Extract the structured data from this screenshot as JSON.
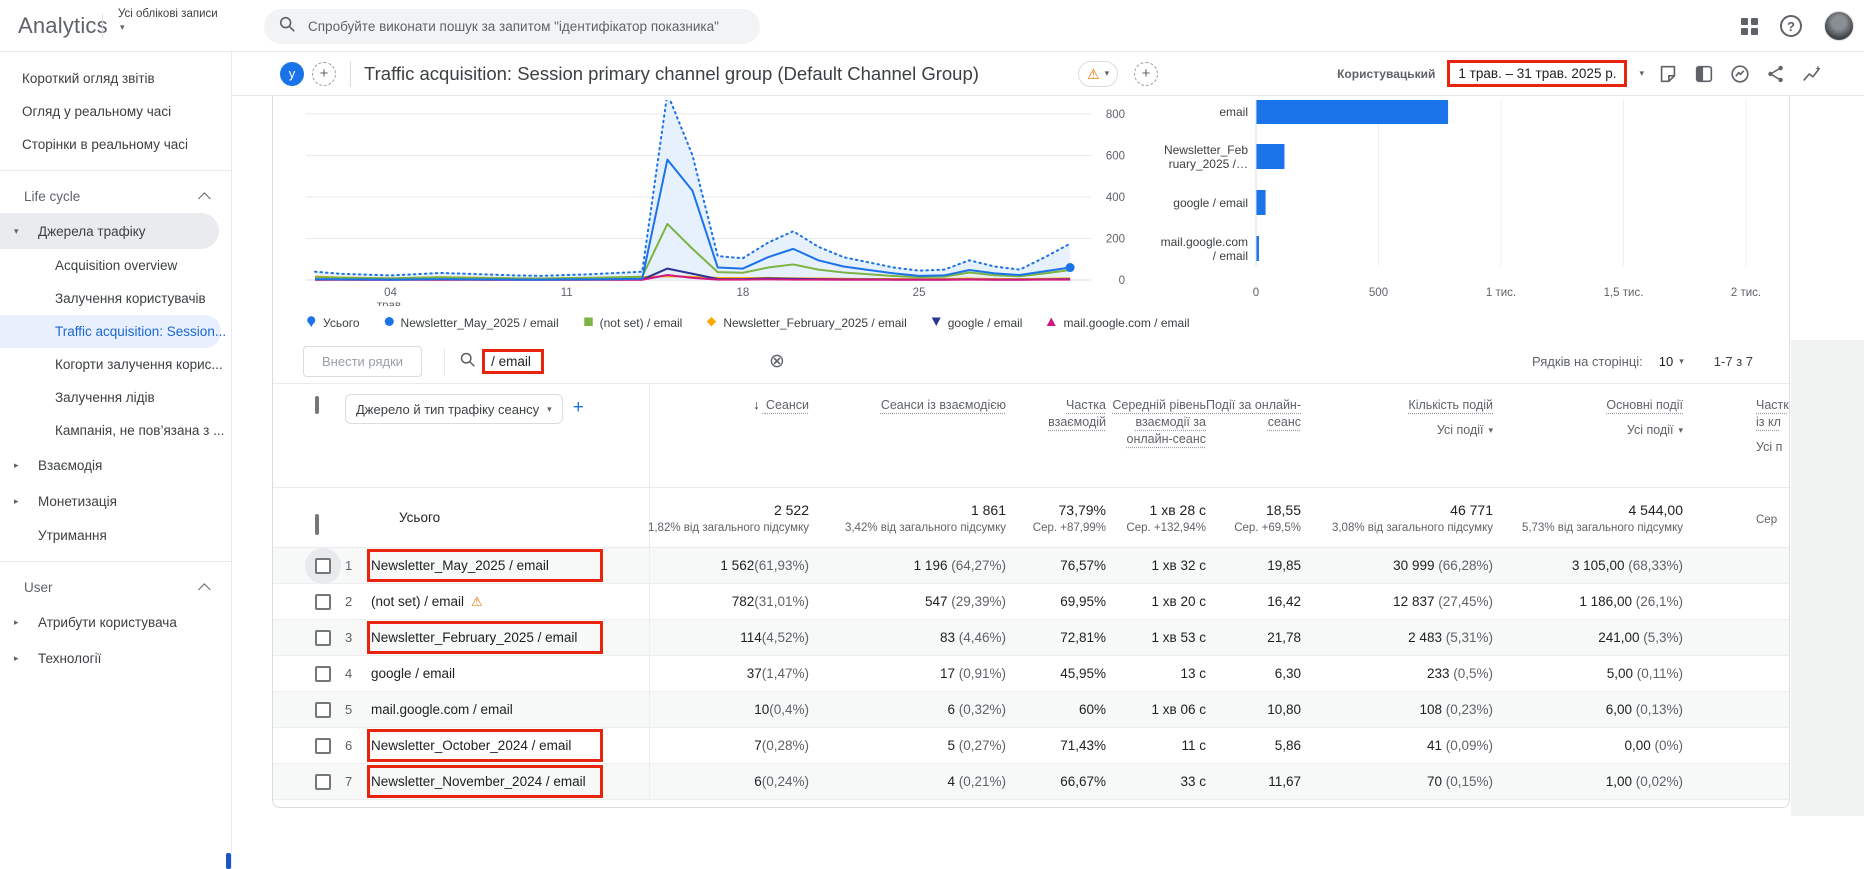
{
  "colors": {
    "accent": "#1a73e8",
    "annotation": "#e8240f",
    "selected_bg": "#e8f0fe",
    "chart_fill": "#e7f0fd"
  },
  "glyphs": {
    "caret_down": "▾",
    "caret_right": "▸",
    "sort_desc": "↓",
    "warning": "⚠",
    "clear": "⊗",
    "plus": "+"
  },
  "topbar": {
    "logo": "Analytics",
    "account_label": "Усі облікові записи",
    "search_placeholder": "Спробуйте виконати пошук за запитом \"ідентифікатор показника\"",
    "help_glyph": "?"
  },
  "sidebar": {
    "items": [
      {
        "type": "link",
        "label": "Короткий огляд звітів"
      },
      {
        "type": "link",
        "label": "Огляд у реальному часі"
      },
      {
        "type": "link",
        "label": "Сторінки в реальному часі"
      },
      {
        "type": "divider"
      },
      {
        "type": "section",
        "label": "Life cycle"
      },
      {
        "type": "group",
        "label": "Джерела трафіку",
        "state": "expanded"
      },
      {
        "type": "child",
        "label": "Acquisition overview"
      },
      {
        "type": "child",
        "label": "Залучення користувачів"
      },
      {
        "type": "child",
        "label": "Traffic acquisition: Session...",
        "selected": true
      },
      {
        "type": "child",
        "label": "Когорти залучення корис..."
      },
      {
        "type": "child",
        "label": "Залучення лідів"
      },
      {
        "type": "child",
        "label": "Кампанія, не пов’язана з ..."
      },
      {
        "type": "group",
        "label": "Взаємодія",
        "state": "collapsed"
      },
      {
        "type": "group",
        "label": "Монетизація",
        "state": "collapsed"
      },
      {
        "type": "plain",
        "label": "Утримання"
      },
      {
        "type": "divider"
      },
      {
        "type": "section",
        "label": "User"
      },
      {
        "type": "group",
        "label": "Атрибути користувача",
        "state": "collapsed"
      },
      {
        "type": "group",
        "label": "Технології",
        "state": "collapsed"
      }
    ]
  },
  "report": {
    "avatar_letter": "у",
    "title": "Traffic acquisition: Session primary channel group (Default Channel Group)",
    "comparison_label": "Користувацький",
    "date_range": "1 трав. – 31 трав. 2025 р."
  },
  "chart_data": [
    {
      "type": "line",
      "x_unit": "day of May 2025",
      "x": [
        1,
        2,
        3,
        4,
        5,
        6,
        7,
        8,
        9,
        10,
        11,
        12,
        13,
        14,
        15,
        16,
        17,
        18,
        19,
        20,
        21,
        22,
        23,
        24,
        25,
        26,
        27,
        28,
        29,
        30,
        31
      ],
      "x_ticks": [
        {
          "day": 4,
          "label": "04 трав."
        },
        {
          "day": 11,
          "label": "11"
        },
        {
          "day": 18,
          "label": "18"
        },
        {
          "day": 25,
          "label": "25"
        }
      ],
      "ylim": [
        0,
        800
      ],
      "yticks": [
        0,
        200,
        400,
        600,
        800
      ],
      "grid": true,
      "series": [
        {
          "name": "Усього",
          "color": "#1a73e8",
          "style": "dotted",
          "fill": true,
          "values": [
            40,
            30,
            26,
            22,
            28,
            34,
            30,
            26,
            22,
            20,
            24,
            28,
            34,
            40,
            900,
            600,
            115,
            105,
            180,
            235,
            160,
            110,
            85,
            60,
            45,
            50,
            95,
            65,
            50,
            110,
            175
          ]
        },
        {
          "name": "Newsletter_May_2025 / email",
          "color": "#1a73e8",
          "style": "solid",
          "end_marker": true,
          "values": [
            4,
            3,
            3,
            2,
            3,
            4,
            3,
            3,
            2,
            2,
            3,
            3,
            4,
            6,
            580,
            430,
            60,
            55,
            110,
            150,
            95,
            65,
            48,
            32,
            20,
            22,
            48,
            32,
            24,
            42,
            60
          ]
        },
        {
          "name": "(not set) / email",
          "color": "#7cb342",
          "style": "solid",
          "values": [
            14,
            11,
            9,
            8,
            11,
            13,
            11,
            9,
            8,
            7,
            9,
            11,
            13,
            16,
            270,
            150,
            38,
            35,
            60,
            75,
            50,
            36,
            28,
            19,
            14,
            16,
            36,
            23,
            18,
            32,
            48
          ]
        },
        {
          "name": "Newsletter_February_2025 / email",
          "color": "#f9ab00",
          "style": "solid",
          "values": [
            16,
            12,
            10,
            8,
            11,
            13,
            12,
            10,
            8,
            7,
            9,
            10,
            12,
            14,
            18,
            15,
            10,
            9,
            10,
            8,
            7,
            6,
            5,
            5,
            4,
            5,
            7,
            5,
            4,
            6,
            8
          ]
        },
        {
          "name": "google / email",
          "color": "#283593",
          "style": "solid",
          "values": [
            2,
            2,
            1,
            1,
            2,
            2,
            2,
            1,
            1,
            1,
            1,
            2,
            2,
            2,
            55,
            30,
            5,
            4,
            8,
            6,
            4,
            3,
            3,
            2,
            2,
            2,
            3,
            2,
            2,
            3,
            4
          ]
        },
        {
          "name": "mail.google.com / email",
          "color": "#d01884",
          "style": "solid",
          "values": [
            1,
            1,
            1,
            1,
            1,
            1,
            1,
            1,
            1,
            1,
            1,
            1,
            1,
            1,
            24,
            10,
            2,
            2,
            3,
            2,
            2,
            1,
            1,
            1,
            1,
            1,
            2,
            1,
            1,
            2,
            2
          ]
        }
      ]
    },
    {
      "type": "bar",
      "orientation": "horizontal",
      "categories": [
        "email",
        "Newsletter_February_2025 /…",
        "google / email",
        "mail.google.com / email"
      ],
      "display_lines": [
        [
          "email"
        ],
        [
          "Newsletter_Feb",
          "ruary_2025 /…"
        ],
        [
          "google / email"
        ],
        [
          "mail.google.com",
          "/ email"
        ]
      ],
      "values": [
        782,
        114,
        37,
        10
      ],
      "bar_color": "#1a73e8",
      "xlim": [
        0,
        2180
      ],
      "xticks": [
        0,
        500,
        1000,
        1500,
        2000
      ],
      "xtick_labels": [
        "0",
        "500",
        "1 тис.",
        "1,5 тис.",
        "2 тис."
      ]
    }
  ],
  "legend": {
    "items": [
      {
        "label": "Усього",
        "marker": "pin",
        "color": "#1a73e8"
      },
      {
        "label": "Newsletter_May_2025 / email",
        "marker": "circle",
        "color": "#1a73e8"
      },
      {
        "label": "(not set) / email",
        "marker": "square",
        "color": "#7cb342"
      },
      {
        "label": "Newsletter_February_2025 / email",
        "marker": "diamond",
        "color": "#f9ab00"
      },
      {
        "label": "google / email",
        "marker": "triangle-down",
        "color": "#283593"
      },
      {
        "label": "mail.google.com / email",
        "marker": "triangle-up",
        "color": "#d01884"
      }
    ]
  },
  "filter": {
    "rows_button": "Внести рядки",
    "search_value": "/ email",
    "rows_per_page_label": "Рядків на сторінці:",
    "rows_per_page": "10",
    "range": "1-7 з 7"
  },
  "table": {
    "dimension_dropdown": "Джерело й тип трафіку сеансу",
    "columns": [
      {
        "label": "Сеанси",
        "sorted": true
      },
      {
        "label": "Сеанси із взаємодією"
      },
      {
        "label": "Частка взаємодій"
      },
      {
        "label": "Середній рівень взаємодії за онлайн-сеанс"
      },
      {
        "label": "Події за онлайн-сеанс"
      },
      {
        "label": "Кількість подій",
        "filter": "Усі події"
      },
      {
        "label": "Основні події",
        "filter": "Усі події"
      }
    ],
    "cut_column": {
      "line1": "Частк",
      "line2": "із кл",
      "line3": "Усі п",
      "totals": "Сер"
    },
    "totals": {
      "label": "Усього",
      "cells": [
        {
          "main": "2 522",
          "sub": "1,82% від загального підсумку"
        },
        {
          "main": "1 861",
          "sub": "3,42% від загального підсумку"
        },
        {
          "main": "73,79%",
          "sub": "Сер. +87,99%"
        },
        {
          "main": "1 хв 28 с",
          "sub": "Сер. +132,94%"
        },
        {
          "main": "18,55",
          "sub": "Сер. +69,5%"
        },
        {
          "main": "46 771",
          "sub": "3,08% від загального підсумку"
        },
        {
          "main": "4 544,00",
          "sub": "5,73% від загального підсумку"
        }
      ]
    },
    "rows": [
      {
        "num": "1",
        "dimension": "Newsletter_May_2025 / email",
        "annotated": true,
        "hover": true,
        "cells": [
          "1 562 (61,93%)",
          "1 196 (64,27%)",
          "76,57%",
          "1 хв 32 с",
          "19,85",
          "30 999 (66,28%)",
          "3 105,00 (68,33%)"
        ]
      },
      {
        "num": "2",
        "dimension": "(not set) / email",
        "warning": true,
        "cells": [
          "782 (31,01%)",
          "547 (29,39%)",
          "69,95%",
          "1 хв 20 с",
          "16,42",
          "12 837 (27,45%)",
          "1 186,00 (26,1%)"
        ]
      },
      {
        "num": "3",
        "dimension": "Newsletter_February_2025 / email",
        "annotated": true,
        "cells": [
          "114 (4,52%)",
          "83 (4,46%)",
          "72,81%",
          "1 хв 53 с",
          "21,78",
          "2 483 (5,31%)",
          "241,00 (5,3%)"
        ]
      },
      {
        "num": "4",
        "dimension": "google / email",
        "cells": [
          "37 (1,47%)",
          "17 (0,91%)",
          "45,95%",
          "13 с",
          "6,30",
          "233 (0,5%)",
          "5,00 (0,11%)"
        ]
      },
      {
        "num": "5",
        "dimension": "mail.google.com / email",
        "cells": [
          "10 (0,4%)",
          "6 (0,32%)",
          "60%",
          "1 хв 06 с",
          "10,80",
          "108 (0,23%)",
          "6,00 (0,13%)"
        ]
      },
      {
        "num": "6",
        "dimension": "Newsletter_October_2024 / email",
        "annotated": true,
        "cells": [
          "7 (0,28%)",
          "5 (0,27%)",
          "71,43%",
          "11 с",
          "5,86",
          "41 (0,09%)",
          "0,00 (0%)"
        ]
      },
      {
        "num": "7",
        "dimension": "Newsletter_November_2024 / email",
        "annotated": true,
        "cells": [
          "6 (0,24%)",
          "4 (0,21%)",
          "66,67%",
          "33 с",
          "11,67",
          "70 (0,15%)",
          "1,00 (0,02%)"
        ]
      }
    ]
  }
}
